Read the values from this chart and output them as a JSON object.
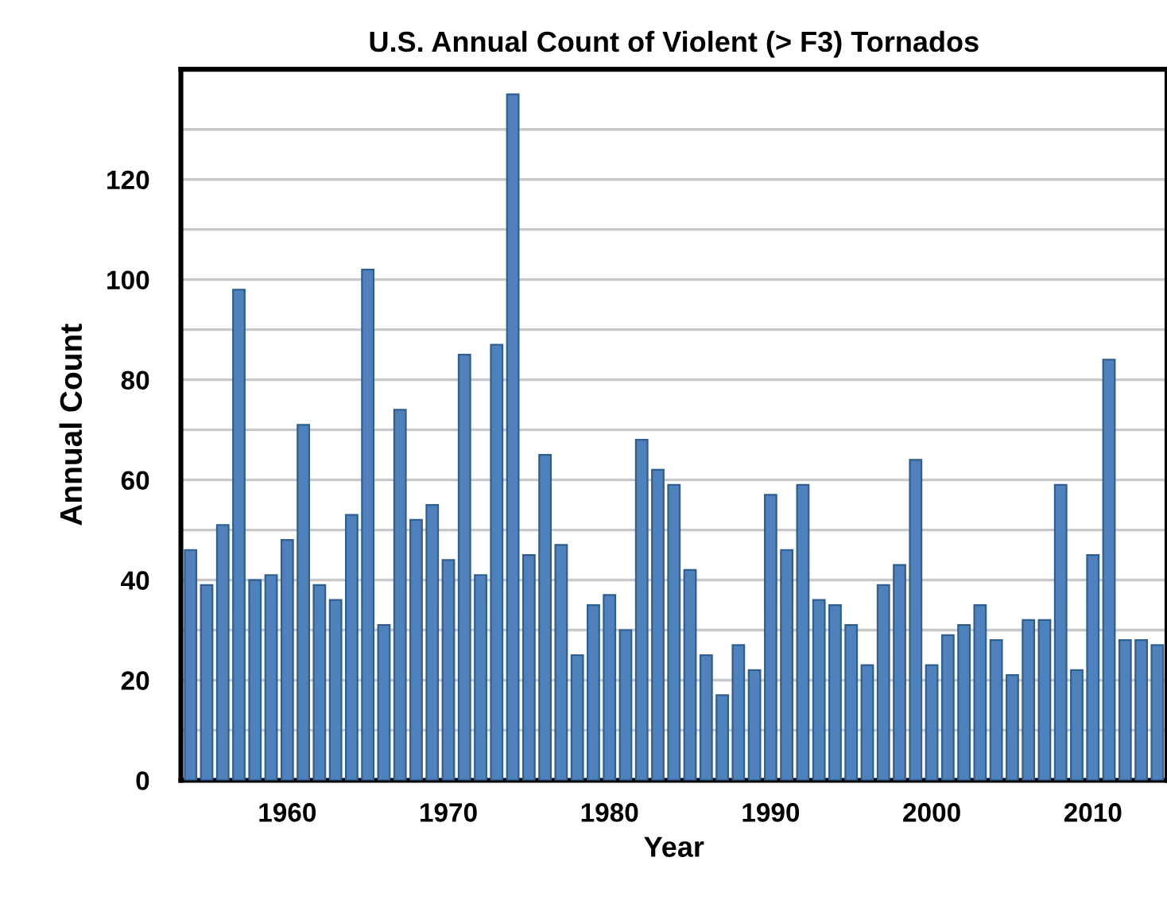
{
  "chart_data": {
    "type": "bar",
    "title": "U.S. Annual Count of Violent (> F3) Tornados",
    "xlabel": "Year",
    "ylabel": "Annual Count",
    "x": [
      1954,
      1955,
      1956,
      1957,
      1958,
      1959,
      1960,
      1961,
      1962,
      1963,
      1964,
      1965,
      1966,
      1967,
      1968,
      1969,
      1970,
      1971,
      1972,
      1973,
      1974,
      1975,
      1976,
      1977,
      1978,
      1979,
      1980,
      1981,
      1982,
      1983,
      1984,
      1985,
      1986,
      1987,
      1988,
      1989,
      1990,
      1991,
      1992,
      1993,
      1994,
      1995,
      1996,
      1997,
      1998,
      1999,
      2000,
      2001,
      2002,
      2003,
      2004,
      2005,
      2006,
      2007,
      2008,
      2009,
      2010,
      2011,
      2012,
      2013,
      2014
    ],
    "values": [
      46,
      39,
      51,
      98,
      40,
      41,
      48,
      71,
      39,
      36,
      53,
      102,
      31,
      74,
      52,
      55,
      44,
      85,
      41,
      87,
      137,
      45,
      65,
      47,
      25,
      35,
      37,
      30,
      68,
      62,
      59,
      42,
      25,
      17,
      27,
      22,
      57,
      46,
      59,
      36,
      35,
      31,
      23,
      39,
      43,
      64,
      23,
      29,
      31,
      35,
      28,
      21,
      32,
      32,
      59,
      22,
      45,
      84,
      28,
      28,
      27
    ],
    "color": "#4f81bd",
    "xlim": [
      1953.4,
      2014.6
    ],
    "xticks": [
      1960,
      1970,
      1980,
      1990,
      2000,
      2010
    ],
    "ylim": [
      0,
      142
    ],
    "yticks": [
      0,
      {
        "value": 10,
        "label": null
      },
      20,
      {
        "value": 30,
        "label": null
      },
      40,
      {
        "value": 50,
        "label": null
      },
      60,
      {
        "value": 70,
        "label": null
      },
      80,
      {
        "value": 90,
        "label": null
      },
      100,
      {
        "value": 110,
        "label": null
      },
      120,
      {
        "value": 130,
        "label": null
      }
    ],
    "grid": "y"
  }
}
